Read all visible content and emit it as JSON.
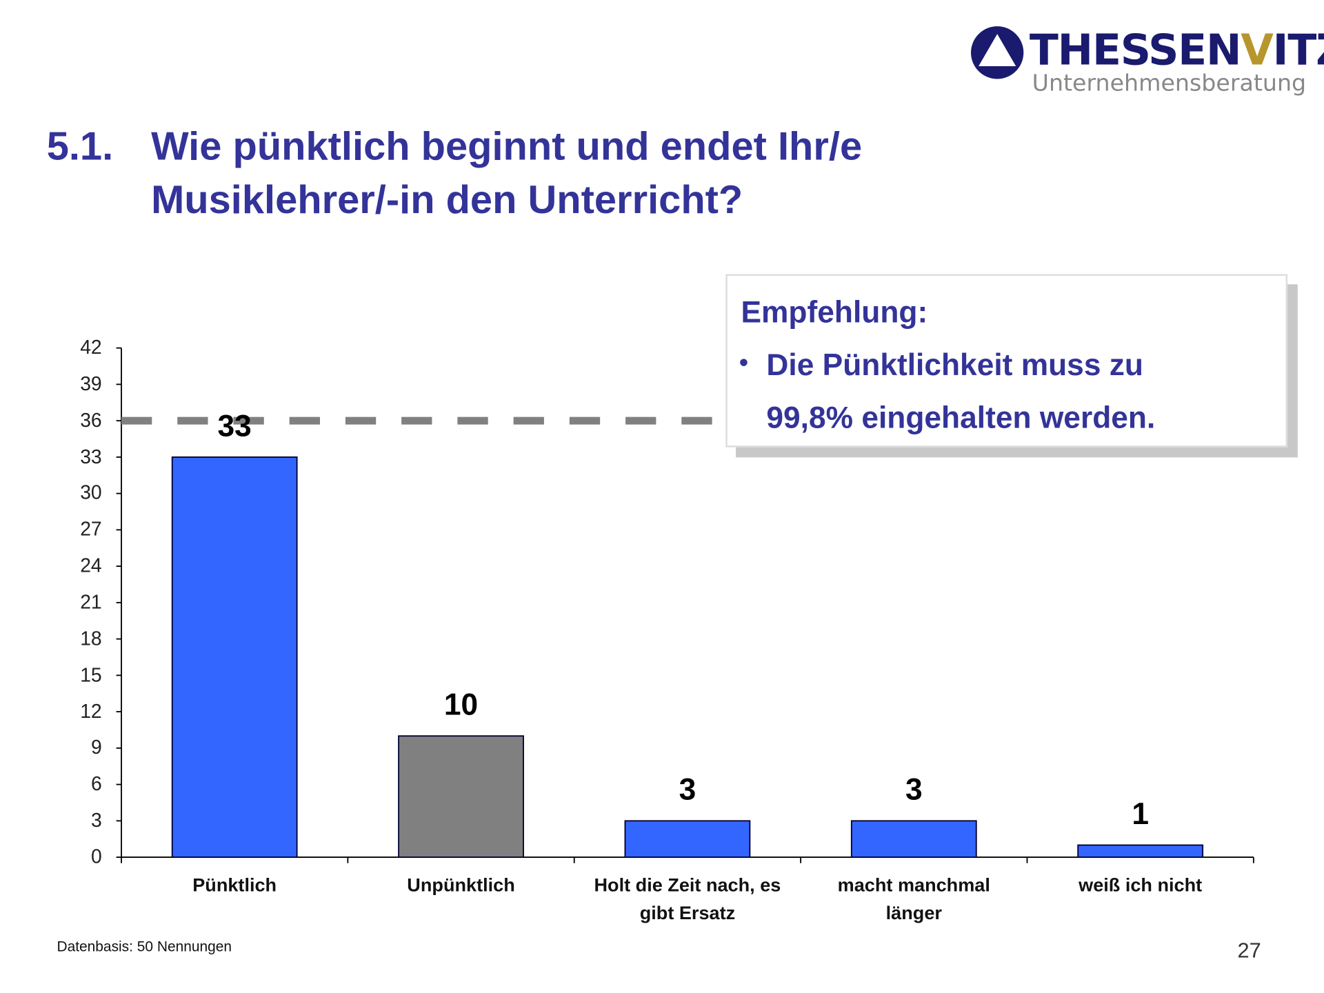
{
  "logo": {
    "name_part1": "THESSEN",
    "name_accent": "V",
    "name_part2": "ITZ",
    "subtitle": "Unternehmensberatung",
    "accent_color": "#b8962e",
    "brand_color": "#1a1a6e"
  },
  "title": {
    "number": "5.1.",
    "line1": "Wie pünktlich beginnt und endet Ihr/e",
    "line2": "Musiklehrer/-in den Unterricht?"
  },
  "recommendation": {
    "heading": "Empfehlung:",
    "bullet": "•",
    "line1": "Die Pünktlichkeit muss zu",
    "line2": "99,8% eingehalten werden."
  },
  "footer": {
    "basis": "Datenbasis: 50 Nennungen",
    "page": "27"
  },
  "chart_data": {
    "type": "bar",
    "categories": [
      "Pünktlich",
      "Unpünktlich",
      "Holt die Zeit nach, es gibt Ersatz",
      "macht manchmal länger",
      "weiß ich nicht"
    ],
    "category_lines": [
      [
        "Pünktlich"
      ],
      [
        "Unpünktlich"
      ],
      [
        "Holt die Zeit nach, es",
        "gibt Ersatz"
      ],
      [
        "macht manchmal",
        "länger"
      ],
      [
        "weiß ich nicht"
      ]
    ],
    "values": [
      33,
      10,
      3,
      3,
      1
    ],
    "colors": [
      "#3366ff",
      "#808080",
      "#3366ff",
      "#3366ff",
      "#3366ff"
    ],
    "ylim": [
      0,
      42
    ],
    "yticks": [
      0,
      3,
      6,
      9,
      12,
      15,
      18,
      21,
      24,
      27,
      30,
      33,
      36,
      39,
      42
    ],
    "reference_line": {
      "value": 36,
      "style": "dashed",
      "color": "#808080"
    },
    "title": "",
    "xlabel": "",
    "ylabel": "",
    "grid": false
  }
}
